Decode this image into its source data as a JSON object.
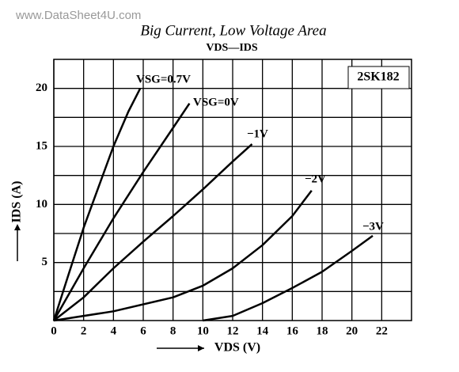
{
  "watermark": "www.DataSheet4U.com",
  "chart_data": {
    "type": "line",
    "title": "Big Current, Low Voltage Area",
    "subtitle": "VDS—IDS",
    "annotation": "2SK182",
    "xlabel": "VDS (V)",
    "ylabel": "IDS (A)",
    "xlim": [
      0,
      24
    ],
    "ylim": [
      0,
      22.5
    ],
    "xticks": [
      0,
      2,
      4,
      6,
      8,
      10,
      12,
      14,
      16,
      18,
      20,
      22
    ],
    "yticks": [
      5,
      10,
      15,
      20
    ],
    "y_minor_grid": [
      2.5,
      7.5,
      12.5,
      17.5
    ],
    "grid": true,
    "series": [
      {
        "name": "VSG=0.7V",
        "color": "#000000",
        "x": [
          0,
          1,
          2,
          3,
          4,
          5,
          5.8
        ],
        "values": [
          0,
          4,
          8,
          11.5,
          15,
          18,
          20
        ]
      },
      {
        "name": "VSG=0V",
        "color": "#000000",
        "x": [
          0,
          2,
          4,
          6,
          8,
          9.1
        ],
        "values": [
          0,
          4.5,
          8.8,
          12.8,
          16.6,
          18.7
        ]
      },
      {
        "name": "−1V",
        "color": "#000000",
        "x": [
          0,
          2,
          4,
          6,
          8,
          10,
          12,
          13.3
        ],
        "values": [
          0,
          2,
          4.5,
          6.8,
          9,
          11.3,
          13.7,
          15.2
        ]
      },
      {
        "name": "−2V",
        "color": "#000000",
        "x": [
          0,
          4,
          8,
          10,
          12,
          14,
          16,
          17.3
        ],
        "values": [
          0,
          0.8,
          2,
          3,
          4.5,
          6.5,
          9,
          11.2
        ]
      },
      {
        "name": "−3V",
        "color": "#000000",
        "x": [
          10,
          12,
          14,
          16,
          18,
          20,
          21.4
        ],
        "values": [
          0,
          0.4,
          1.5,
          2.8,
          4.2,
          6,
          7.3
        ]
      }
    ]
  }
}
